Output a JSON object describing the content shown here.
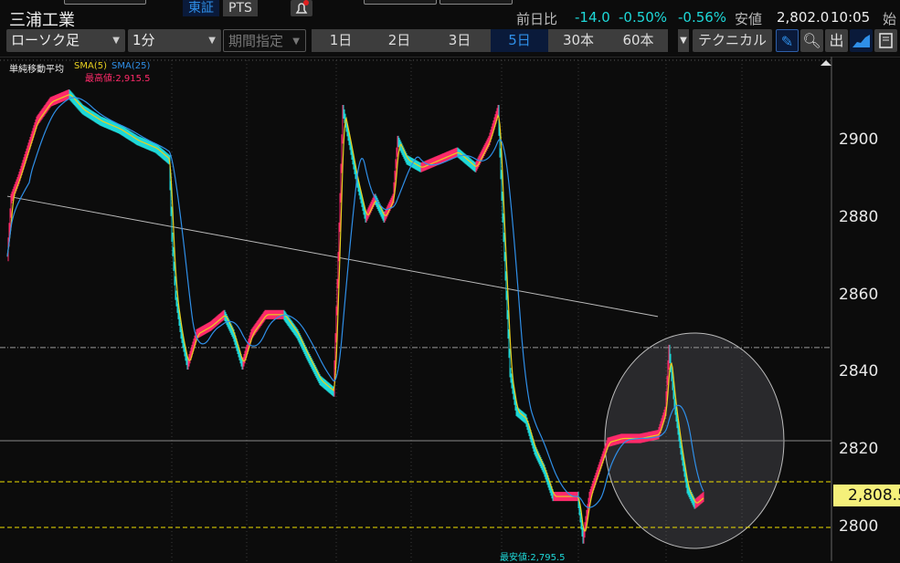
{
  "header": {
    "stock_name": "三浦工業",
    "markets": [
      {
        "label": "東証",
        "active": true
      },
      {
        "label": "PTS",
        "active": false
      }
    ],
    "alert_icon": "bell-icon",
    "stats": {
      "change_label": "前日比",
      "change": "-14.0",
      "change_pct": "-0.50%",
      "other_pct": "-0.56%",
      "low_label": "安値",
      "low": "2,802.0",
      "time": "10:05",
      "open_label": "始"
    }
  },
  "toolbar": {
    "chart_type": "ローソク足",
    "interval": "1分",
    "period": "期間指定",
    "ranges": [
      {
        "label": "1日",
        "active": false
      },
      {
        "label": "2日",
        "active": false
      },
      {
        "label": "3日",
        "active": false
      },
      {
        "label": "5日",
        "active": true
      },
      {
        "label": "30本",
        "active": false
      },
      {
        "label": "60本",
        "active": false
      }
    ],
    "technical": "テクニカル",
    "icons": [
      "pencil-icon",
      "zoom-123-icon",
      "out-icon",
      "area-chart-icon",
      "save-icon"
    ]
  },
  "legend": {
    "title": "単純移動平均",
    "sma5": "SMA(5)",
    "sma25": "SMA(25)"
  },
  "colors": {
    "up": "#ff2a6a",
    "down": "#1ed8d8",
    "sma5": "#e8d020",
    "sma25": "#2f8fe8",
    "hiLabel": "#ff2a6a",
    "loLabel": "#1ed8d8",
    "priceBox": "#f5f07a"
  },
  "chart_data": {
    "type": "line",
    "ylim": [
      2785,
      2915
    ],
    "yticks": [
      2800,
      2820,
      2840,
      2860,
      2880,
      2900
    ],
    "high_label": "最高値:2,915.5",
    "low_label": "最安値:2,795.5",
    "last_price": "2,808.5",
    "horizontal_lines": [
      {
        "price": 2846.5,
        "style": "dashdot",
        "color": "#999"
      },
      {
        "price": 2822.4,
        "style": "solid",
        "color": "#888"
      },
      {
        "price": 2811.8,
        "style": "dashed",
        "color": "#f0e000"
      },
      {
        "price": 2800,
        "style": "dashed",
        "color": "#f0e000"
      }
    ],
    "trendline": {
      "from": [
        0,
        2885.6
      ],
      "to": [
        712,
        2854.5
      ]
    },
    "price_points": [
      [
        0,
        2870
      ],
      [
        4,
        2885
      ],
      [
        12,
        2890
      ],
      [
        32,
        2905
      ],
      [
        47,
        2910
      ],
      [
        67,
        2912
      ],
      [
        82,
        2908
      ],
      [
        102,
        2905
      ],
      [
        122,
        2903
      ],
      [
        142,
        2900
      ],
      [
        162,
        2898
      ],
      [
        177,
        2895
      ],
      [
        180,
        2875
      ],
      [
        184,
        2860
      ],
      [
        190,
        2850
      ],
      [
        197,
        2842
      ],
      [
        207,
        2850
      ],
      [
        222,
        2852
      ],
      [
        237,
        2855
      ],
      [
        247,
        2850
      ],
      [
        257,
        2842
      ],
      [
        267,
        2850
      ],
      [
        282,
        2855
      ],
      [
        302,
        2855
      ],
      [
        317,
        2850
      ],
      [
        327,
        2845
      ],
      [
        342,
        2838
      ],
      [
        357,
        2835
      ],
      [
        362,
        2870
      ],
      [
        367,
        2908
      ],
      [
        374,
        2900
      ],
      [
        382,
        2890
      ],
      [
        392,
        2880
      ],
      [
        402,
        2885
      ],
      [
        412,
        2880
      ],
      [
        422,
        2885
      ],
      [
        427,
        2900
      ],
      [
        437,
        2895
      ],
      [
        452,
        2893
      ],
      [
        472,
        2895
      ],
      [
        492,
        2897
      ],
      [
        512,
        2893
      ],
      [
        527,
        2900
      ],
      [
        537,
        2908
      ],
      [
        542,
        2880
      ],
      [
        545,
        2865
      ],
      [
        550,
        2840
      ],
      [
        557,
        2830
      ],
      [
        567,
        2828
      ],
      [
        577,
        2820
      ],
      [
        587,
        2815
      ],
      [
        597,
        2808
      ],
      [
        612,
        2808
      ],
      [
        624,
        2808
      ],
      [
        630,
        2797
      ],
      [
        637,
        2808
      ],
      [
        647,
        2815
      ],
      [
        657,
        2822
      ],
      [
        672,
        2823
      ],
      [
        692,
        2823
      ],
      [
        712,
        2824
      ],
      [
        720,
        2830
      ],
      [
        724,
        2846
      ],
      [
        730,
        2832
      ],
      [
        737,
        2820
      ],
      [
        744,
        2810
      ],
      [
        752,
        2806
      ],
      [
        762,
        2808
      ]
    ]
  }
}
